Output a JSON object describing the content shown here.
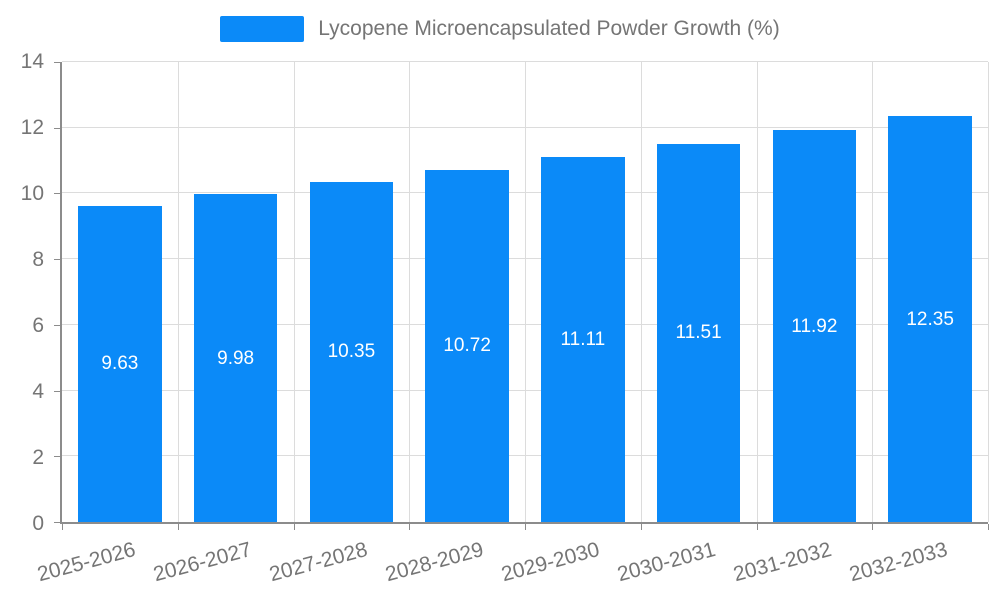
{
  "chart_data": {
    "type": "bar",
    "title": "Lycopene Microencapsulated Powder Growth (%)",
    "categories": [
      "2025-2026",
      "2026-2027",
      "2027-2028",
      "2028-2029",
      "2029-2030",
      "2030-2031",
      "2031-2032",
      "2032-2033"
    ],
    "values": [
      9.63,
      9.98,
      10.35,
      10.72,
      11.11,
      11.51,
      11.92,
      12.35
    ],
    "value_labels": [
      "9.63",
      "9.98",
      "10.35",
      "10.72",
      "11.11",
      "11.51",
      "11.92",
      "12.35"
    ],
    "ylim": [
      0,
      14
    ],
    "yticks": [
      0,
      2,
      4,
      6,
      8,
      10,
      12,
      14
    ],
    "xlabel": "",
    "ylabel": "",
    "grid": true,
    "legend_position": "top",
    "colors": {
      "bar": "#0b8af8",
      "value_label": "#ffffff",
      "axis": "#8c8c8c",
      "gridline": "#dcdcdc",
      "tick_label": "#757575",
      "legend_text": "#757575",
      "background": "#ffffff"
    }
  }
}
